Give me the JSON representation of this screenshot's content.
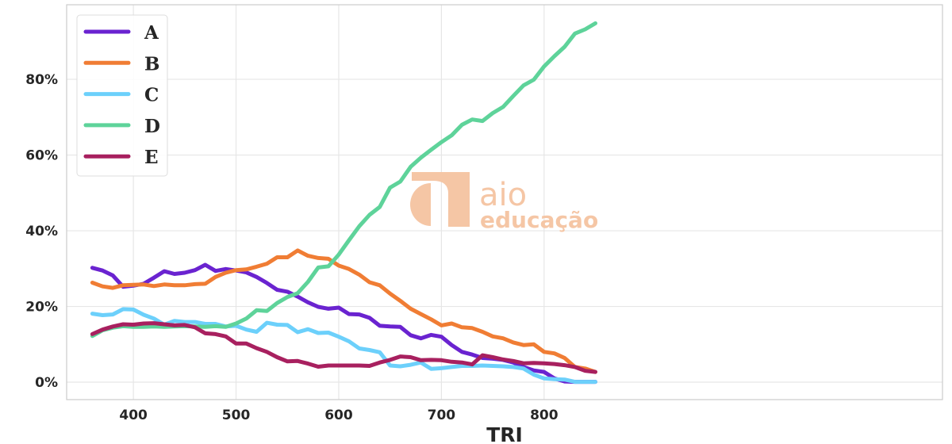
{
  "chart_data": {
    "type": "line",
    "xlabel": "TRI",
    "ylabel": "",
    "xlim": [
      335,
      1188
    ],
    "ylim": [
      -0.046,
      0.997
    ],
    "xticks": [
      400,
      500,
      600,
      700,
      800
    ],
    "yticks": [
      0,
      0.2,
      0.4,
      0.6,
      0.8
    ],
    "ytick_labels": [
      "0%",
      "20%",
      "40%",
      "60%",
      "80%"
    ],
    "grid": true,
    "legend_position": "top-left",
    "x": [
      360,
      370,
      380,
      390,
      400,
      410,
      420,
      430,
      440,
      450,
      460,
      470,
      480,
      490,
      500,
      510,
      520,
      530,
      540,
      550,
      560,
      570,
      580,
      590,
      600,
      610,
      620,
      630,
      640,
      650,
      660,
      670,
      680,
      690,
      700,
      710,
      720,
      730,
      740,
      750,
      760,
      770,
      780,
      790,
      800,
      810,
      820,
      830,
      840,
      850
    ],
    "series": [
      {
        "name": "A",
        "color": "#6a23d0",
        "values": [
          0.302,
          0.295,
          0.282,
          0.252,
          0.255,
          0.26,
          0.276,
          0.293,
          0.286,
          0.289,
          0.296,
          0.31,
          0.294,
          0.299,
          0.295,
          0.29,
          0.278,
          0.262,
          0.244,
          0.239,
          0.226,
          0.211,
          0.199,
          0.194,
          0.197,
          0.18,
          0.179,
          0.17,
          0.149,
          0.147,
          0.146,
          0.124,
          0.116,
          0.125,
          0.12,
          0.098,
          0.08,
          0.073,
          0.064,
          0.062,
          0.059,
          0.052,
          0.04,
          0.031,
          0.027,
          0.01,
          0.002,
          0.001,
          0.001,
          0.001
        ]
      },
      {
        "name": "B",
        "color": "#f07d34",
        "values": [
          0.263,
          0.253,
          0.249,
          0.256,
          0.257,
          0.258,
          0.254,
          0.258,
          0.256,
          0.256,
          0.259,
          0.26,
          0.278,
          0.289,
          0.296,
          0.298,
          0.305,
          0.313,
          0.33,
          0.33,
          0.348,
          0.334,
          0.328,
          0.326,
          0.308,
          0.299,
          0.284,
          0.264,
          0.256,
          0.234,
          0.215,
          0.194,
          0.18,
          0.166,
          0.15,
          0.155,
          0.145,
          0.143,
          0.133,
          0.121,
          0.116,
          0.105,
          0.098,
          0.1,
          0.08,
          0.076,
          0.064,
          0.04,
          0.036,
          0.027
        ]
      },
      {
        "name": "C",
        "color": "#6cd0fb",
        "values": [
          0.181,
          0.177,
          0.179,
          0.193,
          0.192,
          0.178,
          0.168,
          0.152,
          0.162,
          0.159,
          0.159,
          0.154,
          0.154,
          0.147,
          0.149,
          0.139,
          0.133,
          0.157,
          0.152,
          0.151,
          0.132,
          0.14,
          0.13,
          0.131,
          0.12,
          0.108,
          0.089,
          0.085,
          0.079,
          0.044,
          0.042,
          0.046,
          0.052,
          0.035,
          0.037,
          0.04,
          0.043,
          0.043,
          0.044,
          0.043,
          0.042,
          0.04,
          0.036,
          0.02,
          0.01,
          0.008,
          0.007,
          0.001,
          0.001,
          0.001
        ]
      },
      {
        "name": "D",
        "color": "#5ed39a",
        "values": [
          0.122,
          0.137,
          0.144,
          0.148,
          0.146,
          0.146,
          0.147,
          0.146,
          0.147,
          0.148,
          0.147,
          0.146,
          0.148,
          0.146,
          0.155,
          0.168,
          0.19,
          0.188,
          0.209,
          0.225,
          0.235,
          0.265,
          0.303,
          0.306,
          0.337,
          0.375,
          0.412,
          0.442,
          0.463,
          0.514,
          0.53,
          0.569,
          0.593,
          0.614,
          0.634,
          0.652,
          0.68,
          0.694,
          0.69,
          0.711,
          0.727,
          0.756,
          0.784,
          0.799,
          0.834,
          0.861,
          0.886,
          0.921,
          0.932,
          0.948
        ]
      },
      {
        "name": "E",
        "color": "#a8205f",
        "values": [
          0.127,
          0.139,
          0.147,
          0.153,
          0.152,
          0.155,
          0.156,
          0.153,
          0.15,
          0.151,
          0.145,
          0.129,
          0.127,
          0.121,
          0.102,
          0.102,
          0.09,
          0.08,
          0.066,
          0.055,
          0.056,
          0.049,
          0.041,
          0.044,
          0.044,
          0.044,
          0.044,
          0.043,
          0.052,
          0.059,
          0.068,
          0.066,
          0.058,
          0.059,
          0.058,
          0.054,
          0.052,
          0.047,
          0.071,
          0.066,
          0.06,
          0.056,
          0.05,
          0.051,
          0.05,
          0.048,
          0.045,
          0.04,
          0.03,
          0.027
        ]
      }
    ]
  },
  "watermark": {
    "line1": "aio",
    "line2": "educação",
    "color": "#f5c6a5"
  }
}
